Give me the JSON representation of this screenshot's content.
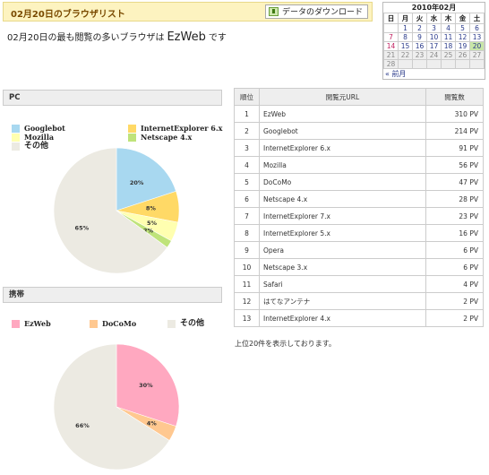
{
  "header": {
    "title": "02月20日のブラウザリスト",
    "download_label": "データのダウンロード"
  },
  "summary": {
    "prefix": "02月20日の最も閲覧の多いブラウザは",
    "browser": "EzWeb",
    "suffix": "です"
  },
  "calendar": {
    "title": "2010年02月",
    "weekdays": [
      "日",
      "月",
      "火",
      "水",
      "木",
      "金",
      "土"
    ],
    "weeks": [
      [
        "",
        "1",
        "2",
        "3",
        "4",
        "5",
        "6"
      ],
      [
        "7",
        "8",
        "9",
        "10",
        "11",
        "12",
        "13"
      ],
      [
        "14",
        "15",
        "16",
        "17",
        "18",
        "19",
        "20"
      ],
      [
        "21",
        "22",
        "23",
        "24",
        "25",
        "26",
        "27"
      ],
      [
        "28",
        "",
        "",
        "",
        "",
        "",
        ""
      ]
    ],
    "today": "20",
    "prev_label": "« 前月"
  },
  "pc": {
    "section_title": "PC",
    "legend": [
      {
        "label": "Googlebot",
        "color": "#a8d8f0"
      },
      {
        "label": "InternetExplorer 6.x",
        "color": "#ffd966"
      },
      {
        "label": "Mozilla",
        "color": "#ffffb0"
      },
      {
        "label": "Netscape 4.x",
        "color": "#bfe37a"
      },
      {
        "label": "その他",
        "color": "#eceae2"
      }
    ]
  },
  "mobile": {
    "section_title": "携帯",
    "legend": [
      {
        "label": "EzWeb",
        "color": "#ffa8c0"
      },
      {
        "label": "DoCoMo",
        "color": "#ffc890"
      },
      {
        "label": "その他",
        "color": "#eceae2"
      }
    ]
  },
  "chart_data": [
    {
      "type": "pie",
      "title": "PC",
      "categories": [
        "Googlebot",
        "InternetExplorer 6.x",
        "Mozilla",
        "Netscape 4.x",
        "その他"
      ],
      "values": [
        20,
        8,
        5,
        2,
        65
      ],
      "labels": [
        "20%",
        "8%",
        "5%",
        "2%",
        "65%"
      ],
      "colors": [
        "#a8d8f0",
        "#ffd966",
        "#ffffb0",
        "#bfe37a",
        "#eceae2"
      ]
    },
    {
      "type": "pie",
      "title": "携帯",
      "categories": [
        "EzWeb",
        "DoCoMo",
        "その他"
      ],
      "values": [
        30,
        4,
        66
      ],
      "labels": [
        "30%",
        "4%",
        "66%"
      ],
      "colors": [
        "#ffa8c0",
        "#ffc890",
        "#eceae2"
      ]
    }
  ],
  "table": {
    "headers": [
      "順位",
      "閲覧元URL",
      "閲覧数"
    ],
    "rows": [
      {
        "rank": "1",
        "url": "EzWeb",
        "count": "310 PV"
      },
      {
        "rank": "2",
        "url": "Googlebot",
        "count": "214 PV"
      },
      {
        "rank": "3",
        "url": "InternetExplorer 6.x",
        "count": "91 PV"
      },
      {
        "rank": "4",
        "url": "Mozilla",
        "count": "56 PV"
      },
      {
        "rank": "5",
        "url": "DoCoMo",
        "count": "47 PV"
      },
      {
        "rank": "6",
        "url": "Netscape 4.x",
        "count": "28 PV"
      },
      {
        "rank": "7",
        "url": "InternetExplorer 7.x",
        "count": "23 PV"
      },
      {
        "rank": "8",
        "url": "InternetExplorer 5.x",
        "count": "16 PV"
      },
      {
        "rank": "9",
        "url": "Opera",
        "count": "6 PV"
      },
      {
        "rank": "10",
        "url": "Netscape 3.x",
        "count": "6 PV"
      },
      {
        "rank": "11",
        "url": "Safari",
        "count": "4 PV"
      },
      {
        "rank": "12",
        "url": "はてなアンテナ",
        "count": "2 PV"
      },
      {
        "rank": "13",
        "url": "InternetExplorer 4.x",
        "count": "2 PV"
      }
    ],
    "footnote": "上位20件を表示しております。"
  },
  "icons": {
    "download": "download-icon"
  }
}
